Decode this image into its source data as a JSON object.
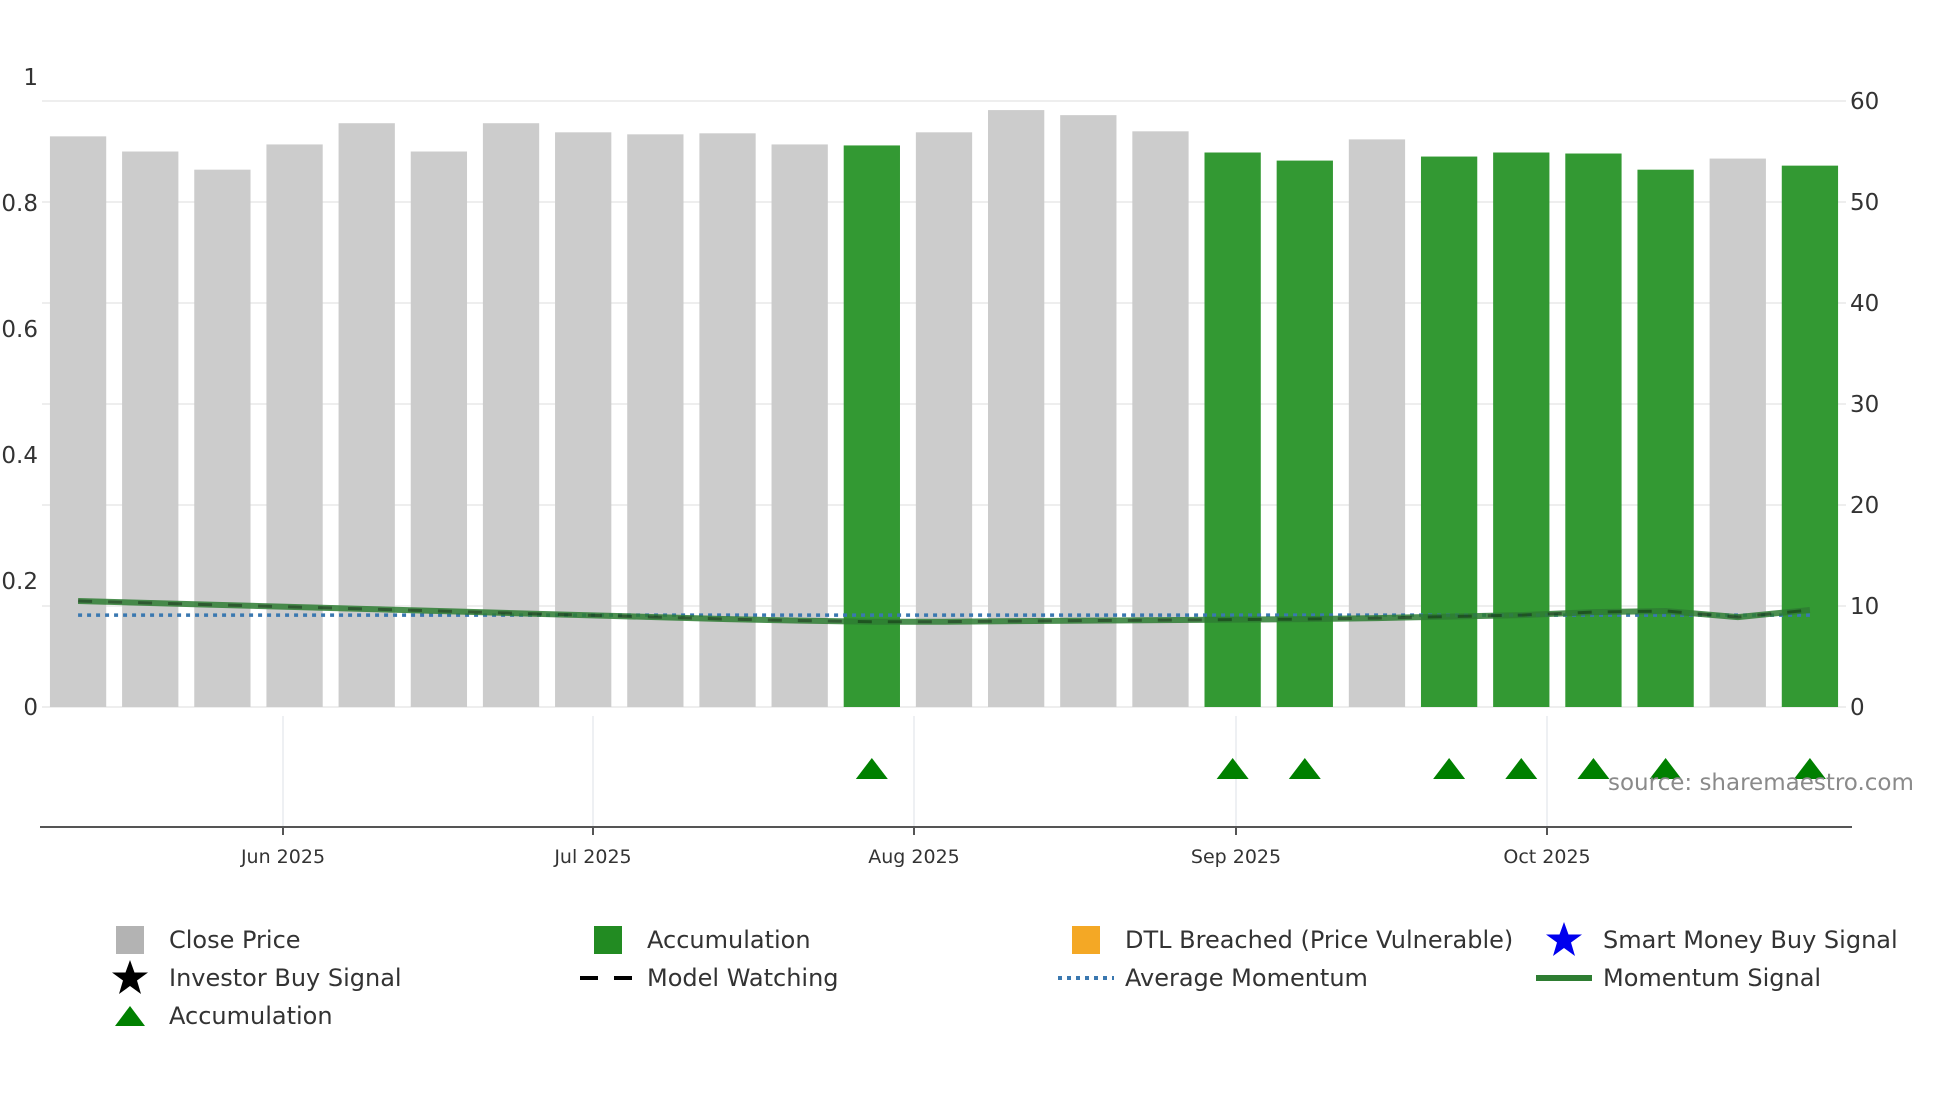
{
  "chart_data": {
    "type": "bar",
    "left_axis": {
      "ticks": [
        "0",
        "0.2",
        "0.4",
        "0.6",
        "0.8",
        "1"
      ],
      "ylim": [
        0,
        1
      ]
    },
    "right_axis": {
      "ticks": [
        "0",
        "10",
        "20",
        "30",
        "40",
        "50",
        "60"
      ],
      "ylim": [
        0,
        60
      ]
    },
    "x_tick_labels": [
      "Jun 2025",
      "Jul 2025",
      "Aug 2025",
      "Sep 2025",
      "Oct 2025"
    ],
    "bars": {
      "values": [
        56.5,
        55.0,
        53.2,
        55.7,
        57.8,
        55.0,
        57.8,
        56.9,
        56.7,
        56.8,
        55.7,
        55.6,
        56.9,
        59.1,
        58.6,
        57.0,
        54.9,
        54.1,
        56.2,
        54.5,
        54.9,
        54.8,
        53.2,
        54.3,
        53.6
      ],
      "accumulation": [
        false,
        false,
        false,
        false,
        false,
        false,
        false,
        false,
        false,
        false,
        false,
        true,
        false,
        false,
        false,
        false,
        true,
        true,
        false,
        true,
        true,
        true,
        true,
        false,
        true
      ]
    },
    "momentum_signal": [
      10.5,
      10.3,
      10.1,
      9.9,
      9.7,
      9.5,
      9.3,
      9.1,
      8.9,
      8.7,
      8.55,
      8.45,
      8.45,
      8.5,
      8.55,
      8.6,
      8.65,
      8.7,
      8.8,
      8.95,
      9.1,
      9.4,
      9.5,
      8.9,
      9.6
    ],
    "average_momentum": 9.1,
    "accumulation_markers": [
      11,
      16,
      17,
      19,
      20,
      21,
      22,
      24
    ],
    "colors": {
      "bar_default": "#cccccc",
      "bar_accumulation": "#339933",
      "momentum_signal": "#2e7d32",
      "average_momentum": "#3a78b0",
      "triangle": "#008000",
      "model_watching": "#000000"
    }
  },
  "source_text": "source: sharemaestro.com",
  "legend": [
    {
      "label": "Close Price",
      "symbol": "square",
      "color": "#b3b3b3"
    },
    {
      "label": "Accumulation",
      "symbol": "square",
      "color": "#228b22"
    },
    {
      "label": "DTL Breached (Price Vulnerable)",
      "symbol": "square",
      "color": "#f4a825"
    },
    {
      "label": "Smart Money Buy Signal",
      "symbol": "star",
      "color": "#0000ee"
    },
    {
      "label": "Investor Buy Signal",
      "symbol": "star",
      "color": "#000000"
    },
    {
      "label": "Model Watching",
      "symbol": "dash",
      "color": "#000000"
    },
    {
      "label": "Average Momentum",
      "symbol": "dot",
      "color": "#3a78b0"
    },
    {
      "label": "Momentum Signal",
      "symbol": "line",
      "color": "#2e7d32"
    },
    {
      "label": "Accumulation",
      "symbol": "triangle",
      "color": "#008000"
    }
  ]
}
